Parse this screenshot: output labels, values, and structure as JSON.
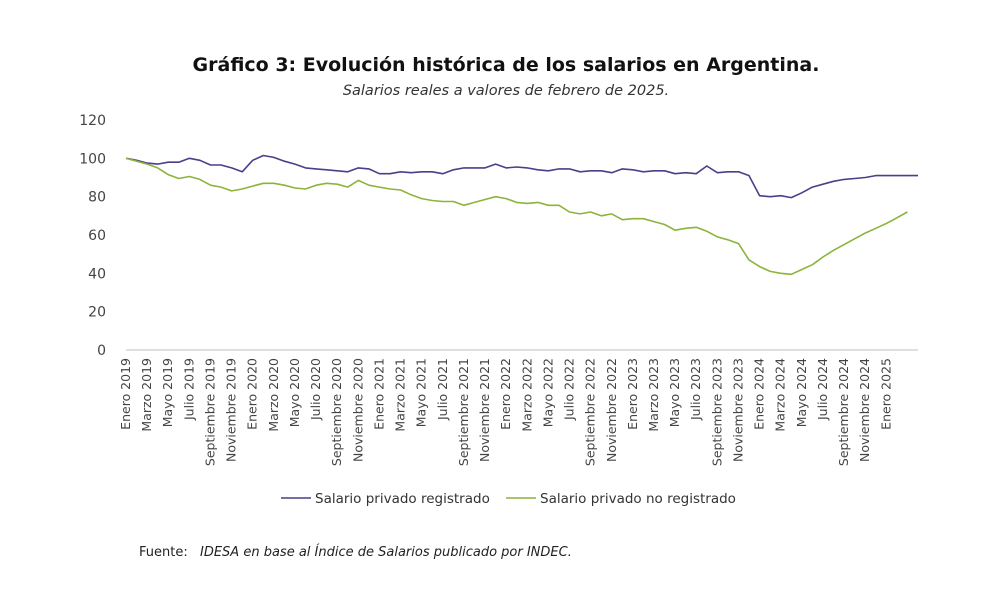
{
  "chart_data": {
    "type": "line",
    "title": "Gráfico 3: Evolución histórica de los salarios en Argentina.",
    "subtitle": "Salarios reales a valores de febrero de 2025.",
    "xlabel": "",
    "ylabel": "",
    "ylim": [
      0,
      120
    ],
    "yticks": [
      0,
      20,
      40,
      60,
      80,
      100,
      120
    ],
    "grid": false,
    "legend_position": "bottom",
    "x_tick_labels": [
      "Enero 2019",
      "Marzo 2019",
      "Mayo 2019",
      "Julio 2019",
      "Septiembre 2019",
      "Noviembre 2019",
      "Enero 2020",
      "Marzo 2020",
      "Mayo 2020",
      "Julio 2020",
      "Septiembre 2020",
      "Noviembre 2020",
      "Enero 2021",
      "Marzo 2021",
      "Mayo 2021",
      "Julio 2021",
      "Septiembre 2021",
      "Noviembre 2021",
      "Enero 2022",
      "Marzo 2022",
      "Mayo 2022",
      "Julio 2022",
      "Septiembre 2022",
      "Noviembre 2022",
      "Enero 2023",
      "Marzo 2023",
      "Mayo 2023",
      "Julio 2023",
      "Septiembre 2023",
      "Noviembre 2023",
      "Enero 2024",
      "Marzo 2024",
      "Mayo 2024",
      "Julio 2024",
      "Septiembre 2024",
      "Noviembre 2024",
      "Enero 2025"
    ],
    "series": [
      {
        "name": "Salario privado registrado",
        "color": "#4a3f8a",
        "values": [
          100,
          99,
          97.5,
          97,
          98,
          98,
          100,
          99,
          96.5,
          96.5,
          95,
          93,
          99,
          101.5,
          100.5,
          98.5,
          97,
          95,
          94.5,
          94,
          93.5,
          93,
          95,
          94.5,
          92,
          92,
          93,
          92.5,
          93,
          93,
          92,
          94,
          95,
          95,
          95,
          97,
          95,
          95.5,
          95,
          94,
          93.5,
          94.5,
          94.5,
          93,
          93.5,
          93.5,
          92.5,
          94.5,
          94,
          93,
          93.5,
          93.5,
          92,
          92.5,
          92,
          96,
          92.5,
          93,
          93,
          91,
          80.5,
          80,
          80.5,
          79.5,
          82,
          85,
          86.5,
          88,
          89,
          89.5,
          90,
          91,
          91,
          91,
          91,
          91
        ]
      },
      {
        "name": "Salario privado no registrado",
        "color": "#8cb43c",
        "values": [
          100,
          98.5,
          97,
          95,
          91.5,
          89.5,
          90.5,
          89,
          86,
          85,
          83,
          84,
          85.5,
          87,
          87,
          86,
          84.5,
          84,
          86,
          87,
          86.5,
          85,
          88.5,
          86,
          85,
          84,
          83.5,
          81,
          79,
          78,
          77.5,
          77.5,
          75.5,
          77,
          78.5,
          80,
          79,
          77,
          76.5,
          77,
          75.5,
          75.5,
          72,
          71,
          72,
          70,
          71,
          68,
          68.5,
          68.5,
          67,
          65.5,
          62.5,
          63.5,
          64,
          62,
          59,
          57.5,
          55.5,
          47,
          43.5,
          41,
          40,
          39.5,
          42,
          44.5,
          48.5,
          52,
          55,
          58,
          61,
          63.5,
          66,
          69,
          72
        ]
      }
    ]
  },
  "legend": {
    "items": [
      "Salario privado registrado",
      "Salario privado no registrado"
    ]
  },
  "source": {
    "label": "Fuente:",
    "text": "IDESA en base al Índice de Salarios publicado por INDEC."
  },
  "colors": {
    "axis": "#bfbfbf",
    "text": "#444444"
  }
}
